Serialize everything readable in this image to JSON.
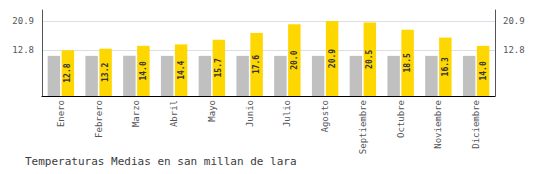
{
  "chart_data": {
    "type": "bar",
    "title": "Temperaturas Medias en san millan de lara",
    "categories": [
      "Enero",
      "Febrero",
      "Marzo",
      "Abril",
      "Mayo",
      "Junio",
      "Julio",
      "Agosto",
      "Septiembre",
      "Octubre",
      "Noviembre",
      "Diciembre"
    ],
    "series": [
      {
        "color": "#C0C0C0",
        "values": [
          11.2,
          11.2,
          11.2,
          11.2,
          11.2,
          11.2,
          11.2,
          11.2,
          11.2,
          11.2,
          11.2,
          11.2
        ]
      },
      {
        "color": "#FFD700",
        "values": [
          12.8,
          13.2,
          14.0,
          14.4,
          15.7,
          17.6,
          20.0,
          20.9,
          20.5,
          18.5,
          16.3,
          14.0
        ],
        "value_labels": [
          "12.8",
          "13.2",
          "14.0",
          "14.4",
          "15.7",
          "17.6",
          "20.0",
          "20.9",
          "20.5",
          "18.5",
          "16.3",
          "14.0"
        ]
      }
    ],
    "ylim": [
      0,
      24
    ],
    "yticks": [
      12.8,
      20.9
    ],
    "y2lim": [
      0,
      24
    ],
    "y2ticks": [
      12.8,
      20.9
    ],
    "grid": true,
    "data_labels": true
  }
}
